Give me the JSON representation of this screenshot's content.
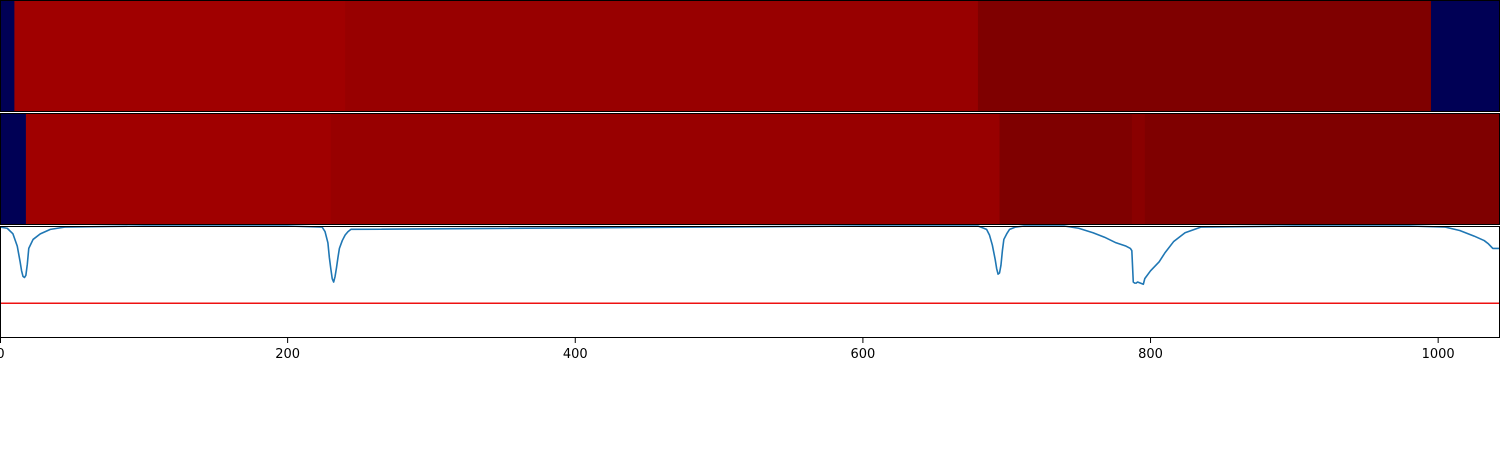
{
  "chart_data": [
    {
      "type": "heatmap",
      "xlim": [
        0,
        1043
      ],
      "segments": [
        {
          "x_start": 0,
          "x_end": 10,
          "color": "#000055"
        },
        {
          "x_start": 10,
          "x_end": 240,
          "color": "#a00000"
        },
        {
          "x_start": 240,
          "x_end": 680,
          "color": "#980000"
        },
        {
          "x_start": 680,
          "x_end": 995,
          "color": "#7f0000"
        },
        {
          "x_start": 995,
          "x_end": 1043,
          "color": "#000055"
        }
      ]
    },
    {
      "type": "heatmap",
      "xlim": [
        0,
        1043
      ],
      "segments": [
        {
          "x_start": 0,
          "x_end": 18,
          "color": "#000055"
        },
        {
          "x_start": 18,
          "x_end": 230,
          "color": "#a00000"
        },
        {
          "x_start": 230,
          "x_end": 695,
          "color": "#980000"
        },
        {
          "x_start": 695,
          "x_end": 787,
          "color": "#7f0000"
        },
        {
          "x_start": 787,
          "x_end": 796,
          "color": "#8a0000"
        },
        {
          "x_start": 796,
          "x_end": 1043,
          "color": "#7f0000"
        }
      ]
    },
    {
      "type": "line",
      "xlim": [
        0,
        1043
      ],
      "ylim": [
        0,
        1
      ],
      "grid": false,
      "xticks": [
        0,
        200,
        400,
        600,
        800,
        1000
      ],
      "threshold": {
        "value": 0.31,
        "color": "#ee1111"
      },
      "series": [
        {
          "color": "#1f77b4",
          "x": [
            0,
            5,
            9,
            12,
            14,
            15,
            16,
            17,
            18,
            19,
            20,
            23,
            28,
            35,
            45,
            100,
            200,
            224,
            226,
            228,
            229,
            230,
            231,
            232,
            233,
            234,
            235,
            236,
            238,
            240,
            242,
            244,
            600,
            680,
            686,
            688,
            690,
            692,
            693,
            694,
            695,
            696,
            697,
            698,
            700,
            702,
            706,
            712,
            740,
            750,
            760,
            768,
            776,
            783,
            786,
            787,
            788,
            789,
            790,
            791,
            793,
            795,
            796,
            800,
            806,
            810,
            816,
            824,
            835,
            900,
            980,
            1005,
            1015,
            1025,
            1032,
            1035,
            1038,
            1043
          ],
          "y": [
            0.99,
            0.98,
            0.93,
            0.82,
            0.68,
            0.6,
            0.55,
            0.54,
            0.56,
            0.66,
            0.8,
            0.88,
            0.93,
            0.97,
            0.99,
            1.0,
            1.0,
            0.99,
            0.95,
            0.85,
            0.72,
            0.62,
            0.53,
            0.5,
            0.55,
            0.63,
            0.72,
            0.8,
            0.87,
            0.92,
            0.95,
            0.97,
            1.0,
            1.0,
            0.97,
            0.92,
            0.83,
            0.7,
            0.62,
            0.57,
            0.58,
            0.65,
            0.78,
            0.88,
            0.93,
            0.97,
            0.99,
            1.0,
            1.0,
            0.98,
            0.94,
            0.9,
            0.85,
            0.82,
            0.8,
            0.78,
            0.5,
            0.49,
            0.49,
            0.5,
            0.49,
            0.48,
            0.53,
            0.6,
            0.68,
            0.76,
            0.86,
            0.94,
            0.99,
            1.0,
            1.0,
            0.99,
            0.96,
            0.91,
            0.87,
            0.84,
            0.8,
            0.8
          ]
        }
      ]
    }
  ]
}
